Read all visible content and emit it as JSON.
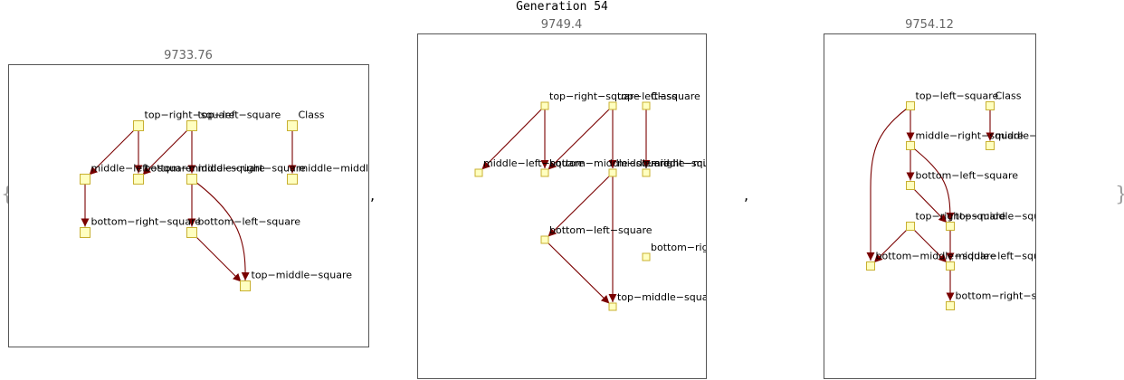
{
  "title": "Generation 54",
  "open_brace": "{",
  "close_brace": "}",
  "separator": ",",
  "panels": [
    {
      "score": "9733.76",
      "nodes": [
        {
          "id": "trs",
          "label": "top−right−square"
        },
        {
          "id": "tls",
          "label": "top−left−square"
        },
        {
          "id": "cls",
          "label": "Class"
        },
        {
          "id": "mls",
          "label": "middle−left−square"
        },
        {
          "id": "bms",
          "label": "bottom−middle−square"
        },
        {
          "id": "mrs",
          "label": "middle−right−square"
        },
        {
          "id": "mms",
          "label": "middle−middle−square"
        },
        {
          "id": "brs",
          "label": "bottom−right−square"
        },
        {
          "id": "bls",
          "label": "bottom−left−square"
        },
        {
          "id": "tms",
          "label": "top−middle−square"
        }
      ],
      "edges": [
        [
          "trs",
          "mls"
        ],
        [
          "trs",
          "bms"
        ],
        [
          "tls",
          "bms"
        ],
        [
          "tls",
          "mrs"
        ],
        [
          "cls",
          "mms"
        ],
        [
          "mls",
          "brs"
        ],
        [
          "mrs",
          "bls"
        ],
        [
          "mrs",
          "tms"
        ],
        [
          "bls",
          "tms"
        ]
      ]
    },
    {
      "score": "9749.4",
      "nodes": [
        {
          "id": "trs",
          "label": "top−right−square"
        },
        {
          "id": "tls",
          "label": "top−left−square"
        },
        {
          "id": "cls",
          "label": "Class"
        },
        {
          "id": "mls",
          "label": "middle−left−square"
        },
        {
          "id": "bms",
          "label": "bottom−middle−square"
        },
        {
          "id": "mrs",
          "label": "middle−right−square"
        },
        {
          "id": "mms",
          "label": "middle−middle−square"
        },
        {
          "id": "bls",
          "label": "bottom−left−square"
        },
        {
          "id": "brs",
          "label": "bottom−right−square"
        },
        {
          "id": "tms",
          "label": "top−middle−square"
        }
      ],
      "edges": [
        [
          "trs",
          "mls"
        ],
        [
          "trs",
          "bms"
        ],
        [
          "tls",
          "bms"
        ],
        [
          "tls",
          "mrs"
        ],
        [
          "cls",
          "mms"
        ],
        [
          "mrs",
          "bls"
        ],
        [
          "mrs",
          "tms"
        ],
        [
          "bls",
          "tms"
        ]
      ]
    },
    {
      "score": "9754.12",
      "nodes": [
        {
          "id": "tls",
          "label": "top−left−square"
        },
        {
          "id": "cls",
          "label": "Class"
        },
        {
          "id": "mrs",
          "label": "middle−right−square"
        },
        {
          "id": "mms",
          "label": "middle−middle−square"
        },
        {
          "id": "bls",
          "label": "bottom−left−square"
        },
        {
          "id": "trs",
          "label": "top−right−square"
        },
        {
          "id": "tms",
          "label": "top−middle−square"
        },
        {
          "id": "bms",
          "label": "bottom−middle−square"
        },
        {
          "id": "mls",
          "label": "middle−left−square"
        },
        {
          "id": "brs",
          "label": "bottom−right−square"
        }
      ],
      "edges": [
        [
          "tls",
          "mrs"
        ],
        [
          "tls",
          "bms"
        ],
        [
          "cls",
          "mms"
        ],
        [
          "mrs",
          "bls"
        ],
        [
          "mrs",
          "tms"
        ],
        [
          "bls",
          "tms"
        ],
        [
          "trs",
          "bms"
        ],
        [
          "trs",
          "mls"
        ],
        [
          "tms",
          "mls"
        ],
        [
          "mls",
          "brs"
        ]
      ]
    }
  ]
}
